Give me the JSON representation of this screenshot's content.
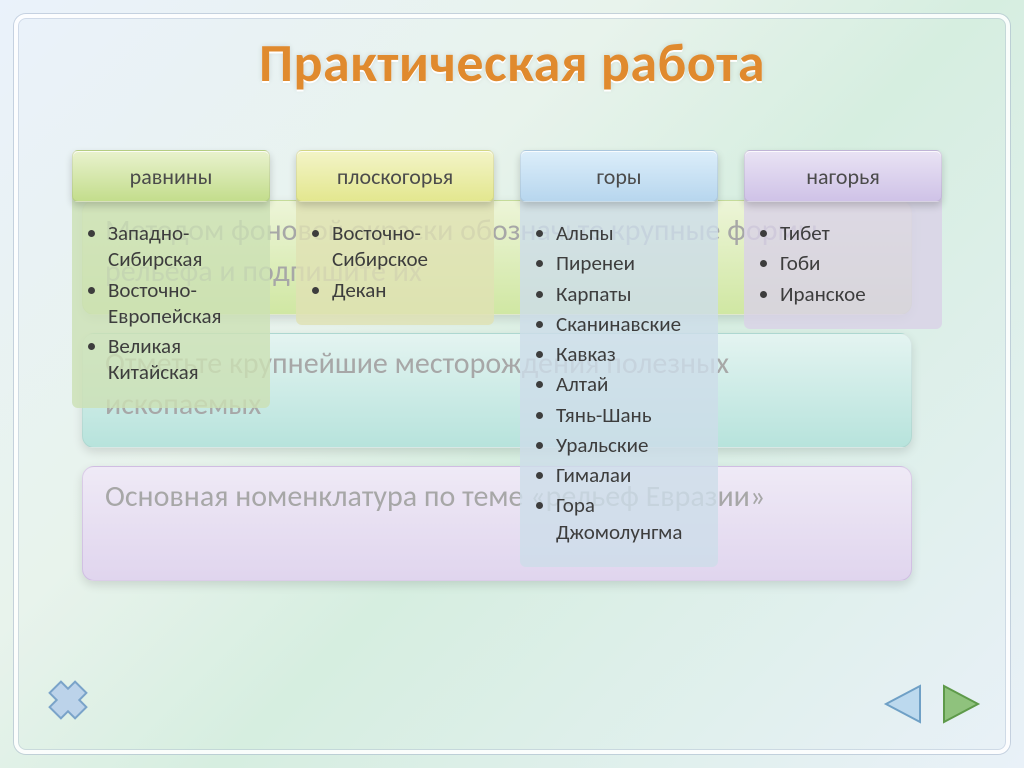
{
  "title": "Практическая работа",
  "title_color": "#e08a2e",
  "ghost_lines": {
    "g1": "Методом фоновой окраски обозначьте крупные формы рельефа и подпишите их",
    "g2": "Отметьте крупнейшие месторождения полезных ископаемых",
    "g3": "Основная номенклатура по теме «рельеф Евразии»"
  },
  "columns": [
    {
      "header": "равнины",
      "header_class": "h-green",
      "body_class": "b-green",
      "items": [
        "Западно-Сибирская",
        "Восточно-Европейская",
        "Великая Китайская"
      ]
    },
    {
      "header": "плоскогорья",
      "header_class": "h-yellow",
      "body_class": "b-yellow",
      "items": [
        "Восточно-Сибирское",
        "Декан"
      ]
    },
    {
      "header": "горы",
      "header_class": "h-blue",
      "body_class": "b-blue",
      "items": [
        "Альпы",
        "Пиренеи",
        "Карпаты",
        "Сканинавские",
        "Кавказ",
        "Алтай",
        "Тянь-Шань",
        "Уральские",
        "Гималаи",
        "Гора Джомолунгма"
      ]
    },
    {
      "header": "нагорья",
      "header_class": "h-purple",
      "body_class": "b-purple",
      "items": [
        "Тибет",
        "Гоби",
        "Иранское"
      ]
    }
  ],
  "nav": {
    "close_color_fill": "#bcd3ea",
    "close_color_stroke": "#7aa3c9",
    "prev_fill": "#bcd9ee",
    "prev_stroke": "#6fa0c6",
    "next_fill": "#8fc27d",
    "next_stroke": "#5e9a4a"
  },
  "layout": {
    "slide_w": 1024,
    "slide_h": 768,
    "title_fontsize": 54,
    "header_fontsize": 22,
    "item_fontsize": 21,
    "ghost_fontsize": 30
  }
}
